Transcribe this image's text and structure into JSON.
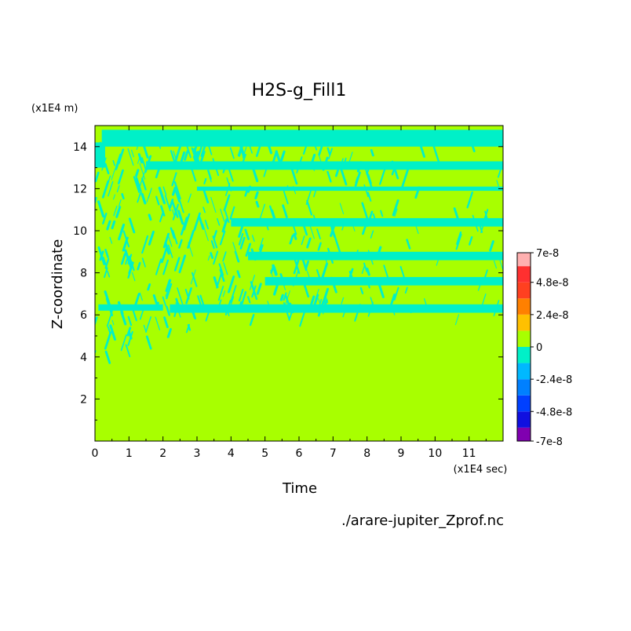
{
  "chart_data": {
    "type": "heatmap",
    "title": "H2S-g_Fill1",
    "xlabel": "Time",
    "ylabel": "Z-coordinate",
    "x_unit": "(x1E4 sec)",
    "y_unit": "(x1E4 m)",
    "source_file": "./arare-jupiter_Zprof.nc",
    "xlim": [
      0,
      12
    ],
    "ylim": [
      0,
      15
    ],
    "x_ticks": [
      "0",
      "1",
      "2",
      "3",
      "4",
      "5",
      "6",
      "7",
      "8",
      "9",
      "10",
      "11"
    ],
    "x_tick_values": [
      0,
      1,
      2,
      3,
      4,
      5,
      6,
      7,
      8,
      9,
      10,
      11
    ],
    "y_ticks": [
      "2",
      "4",
      "6",
      "8",
      "10",
      "12",
      "14"
    ],
    "y_tick_values": [
      2,
      4,
      6,
      8,
      10,
      12,
      14
    ],
    "grid": false,
    "colorbar": {
      "labels": [
        "7e-8",
        "4.8e-8",
        "2.4e-8",
        "0",
        "-2.4e-8",
        "-4.8e-8",
        "-7e-8"
      ],
      "label_values": [
        7e-08,
        4.8e-08,
        2.4e-08,
        0,
        -2.4e-08,
        -4.8e-08,
        -7e-08
      ],
      "levels": [
        -7e-08,
        -6e-08,
        -4.8e-08,
        -3.6e-08,
        -2.4e-08,
        -1.2e-08,
        0,
        1.2e-08,
        2.4e-08,
        3.6e-08,
        4.8e-08,
        6e-08,
        7e-08
      ],
      "colors": [
        "#8000b0",
        "#1010e0",
        "#0040ff",
        "#0080ff",
        "#00b8ff",
        "#00f0c8",
        "#a8ff00",
        "#ffc000",
        "#ff8000",
        "#ff4020",
        "#ff3030",
        "#ffb0b0"
      ]
    },
    "background_value": 0.0,
    "background_color": "#a8ff00",
    "negative_color": "#00f0c8",
    "bands": [
      {
        "t_start": 0.2,
        "t_end": 12.0,
        "z_low": 14.0,
        "z_high": 14.8,
        "value": -5e-09
      },
      {
        "t_start": 0.0,
        "t_end": 0.3,
        "z_low": 13.0,
        "z_high": 14.2,
        "value": -5e-09
      },
      {
        "t_start": 1.5,
        "t_end": 12.0,
        "z_low": 12.9,
        "z_high": 13.3,
        "value": -5e-09
      },
      {
        "t_start": 3.0,
        "t_end": 12.0,
        "z_low": 11.9,
        "z_high": 12.1,
        "value": -5e-09
      },
      {
        "t_start": 4.0,
        "t_end": 12.0,
        "z_low": 10.2,
        "z_high": 10.6,
        "value": -5e-09
      },
      {
        "t_start": 4.5,
        "t_end": 12.0,
        "z_low": 8.6,
        "z_high": 9.0,
        "value": -5e-09
      },
      {
        "t_start": 5.0,
        "t_end": 12.0,
        "z_low": 7.4,
        "z_high": 7.8,
        "value": -5e-09
      },
      {
        "t_start": 2.2,
        "t_end": 12.0,
        "z_low": 6.1,
        "z_high": 6.5,
        "value": -5e-09
      },
      {
        "t_start": 0.1,
        "t_end": 2.0,
        "z_low": 6.2,
        "z_high": 6.5,
        "value": -5e-09
      }
    ]
  }
}
